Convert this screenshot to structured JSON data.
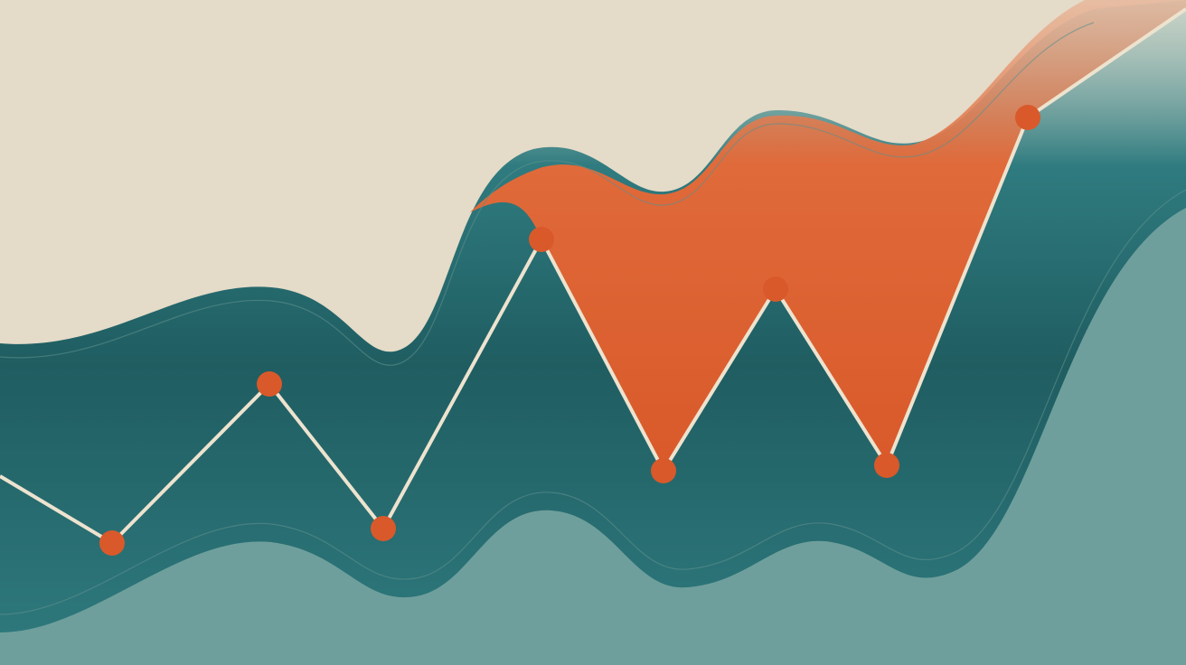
{
  "colors": {
    "background": "#e4dbc8",
    "teal_dark": "#1f5d61",
    "teal_mid": "#2f7b7f",
    "teal_light": "#6f9f9c",
    "orange": "#d9592a",
    "line": "#ede3cf",
    "marker": "#d9592a"
  },
  "markers": 8
}
